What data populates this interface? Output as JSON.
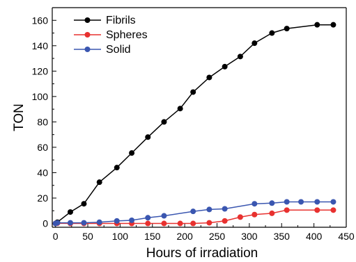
{
  "chart_data": {
    "type": "line",
    "title": "",
    "xlabel": "Hours of irradiation",
    "ylabel": "TON",
    "xlim": [
      -5,
      450
    ],
    "ylim": [
      -3,
      170
    ],
    "xticks": [
      0,
      50,
      100,
      150,
      200,
      250,
      300,
      350,
      400,
      450
    ],
    "yticks": [
      0,
      20,
      40,
      60,
      80,
      100,
      120,
      140,
      160
    ],
    "grid": false,
    "legend_position": "top-left",
    "series": [
      {
        "name": "Fibrils",
        "color": "#000000",
        "x": [
          0,
          3,
          23,
          44,
          68,
          95,
          118,
          143,
          168,
          193,
          213,
          238,
          262,
          286,
          308,
          335,
          358,
          405,
          430
        ],
        "y": [
          0,
          1,
          9,
          15.5,
          32.5,
          44,
          55.5,
          68,
          80,
          90.5,
          103.5,
          115,
          123.5,
          131.5,
          142,
          150,
          153.5,
          156.5,
          156.5
        ]
      },
      {
        "name": "Spheres",
        "color": "#e8312f",
        "x": [
          0,
          3,
          23,
          44,
          68,
          95,
          118,
          143,
          168,
          193,
          213,
          238,
          262,
          286,
          308,
          335,
          358,
          405,
          430
        ],
        "y": [
          0,
          0.2,
          0,
          0,
          0,
          0,
          0,
          0,
          0,
          0,
          0,
          0.5,
          2,
          5,
          7,
          8,
          10.5,
          10.5,
          10.5
        ]
      },
      {
        "name": "Solid",
        "color": "#3a56b0",
        "x": [
          0,
          3,
          23,
          44,
          68,
          95,
          118,
          143,
          168,
          213,
          238,
          262,
          308,
          335,
          358,
          380,
          405,
          430
        ],
        "y": [
          0,
          0.5,
          0.5,
          0.5,
          1,
          2,
          2.5,
          4.5,
          6,
          9.5,
          11,
          11.5,
          15.5,
          16,
          17,
          17,
          17,
          17
        ]
      }
    ]
  }
}
